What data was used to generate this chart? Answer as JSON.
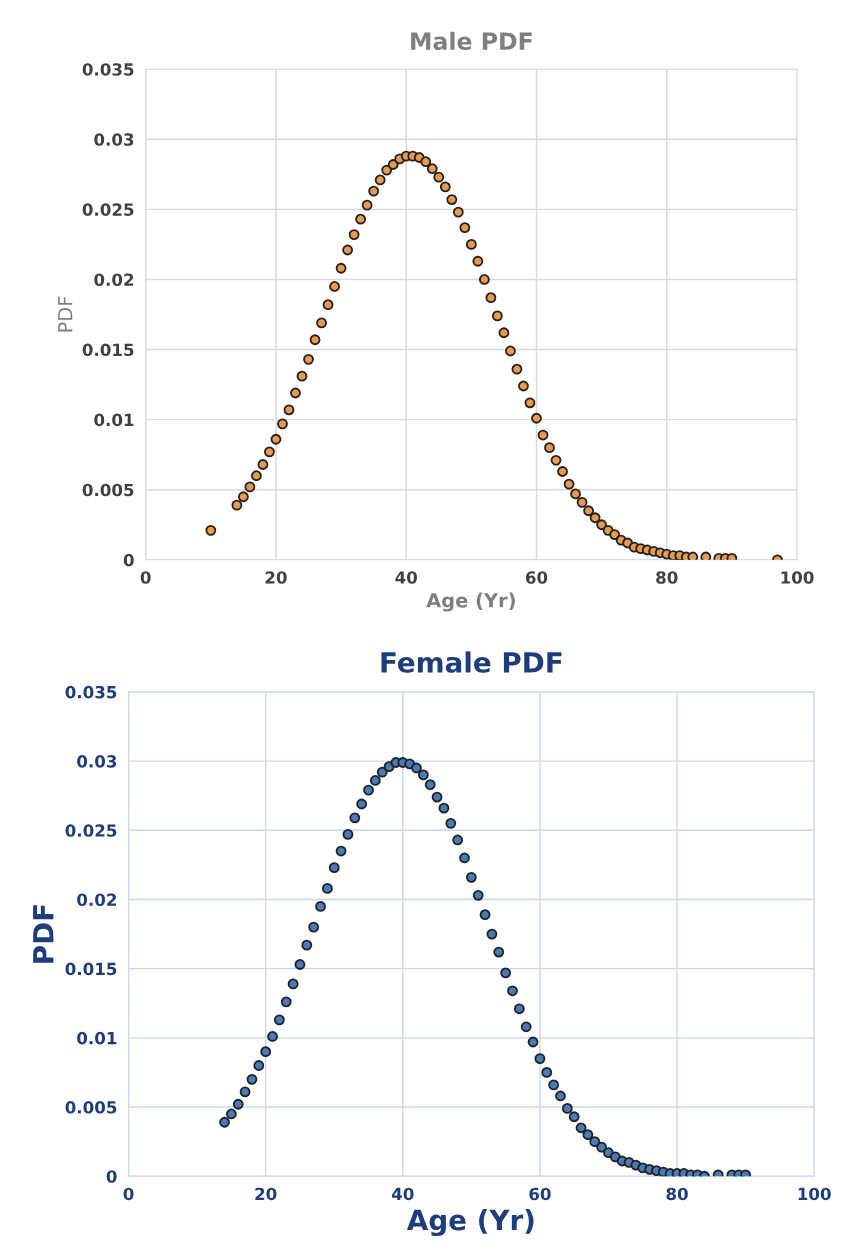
{
  "chart_data": [
    {
      "type": "scatter",
      "title": "Male PDF",
      "xlabel": "Age (Yr)",
      "ylabel": "PDF",
      "xlim": [
        0,
        100
      ],
      "xticks": [
        0,
        20,
        40,
        60,
        80,
        100
      ],
      "ylim": [
        0,
        0.035
      ],
      "yticks": [
        0,
        0.005,
        0.01,
        0.015,
        0.02,
        0.025,
        0.03,
        0.035
      ],
      "grid": true,
      "marker": "circle",
      "series": [
        {
          "color": "#e89a50",
          "x": [
            10,
            14,
            15,
            16,
            17,
            18,
            19,
            20,
            21,
            22,
            23,
            24,
            25,
            26,
            27,
            28,
            29,
            30,
            31,
            32,
            33,
            34,
            35,
            36,
            37,
            38,
            39,
            40,
            41,
            42,
            43,
            44,
            45,
            46,
            47,
            48,
            49,
            50,
            51,
            52,
            53,
            54,
            55,
            56,
            57,
            58,
            59,
            60,
            61,
            62,
            63,
            64,
            65,
            66,
            67,
            68,
            69,
            70,
            71,
            72,
            73,
            74,
            75,
            76,
            77,
            78,
            79,
            80,
            81,
            82,
            83,
            84,
            86,
            88,
            89,
            90,
            97
          ],
          "values": [
            0.0021,
            0.0039,
            0.0045,
            0.0052,
            0.006,
            0.0068,
            0.0077,
            0.0086,
            0.0097,
            0.0107,
            0.0119,
            0.0131,
            0.0143,
            0.0157,
            0.0169,
            0.0182,
            0.0195,
            0.0208,
            0.0221,
            0.0232,
            0.0243,
            0.0253,
            0.0263,
            0.0271,
            0.0278,
            0.0282,
            0.0286,
            0.0288,
            0.0288,
            0.0287,
            0.0284,
            0.0279,
            0.0273,
            0.0266,
            0.0257,
            0.0248,
            0.0237,
            0.0225,
            0.0213,
            0.02,
            0.0187,
            0.0174,
            0.0162,
            0.0149,
            0.0136,
            0.0124,
            0.0112,
            0.0101,
            0.0089,
            0.008,
            0.0071,
            0.0063,
            0.0054,
            0.0047,
            0.0041,
            0.0035,
            0.003,
            0.0025,
            0.0021,
            0.0018,
            0.0014,
            0.0012,
            0.0009,
            0.0008,
            0.0007,
            0.0006,
            0.0005,
            0.0004,
            0.0003,
            0.0003,
            0.0002,
            0.0002,
            0.0002,
            0.0001,
            0.0001,
            0.0001,
            0.0
          ]
        }
      ]
    },
    {
      "type": "scatter",
      "title": "Female PDF",
      "xlabel": "Age (Yr)",
      "ylabel": "PDF",
      "xlim": [
        0,
        100
      ],
      "xticks": [
        0,
        20,
        40,
        60,
        80,
        100
      ],
      "ylim": [
        0,
        0.035
      ],
      "yticks": [
        0,
        0.005,
        0.01,
        0.015,
        0.02,
        0.025,
        0.03,
        0.035
      ],
      "grid": true,
      "marker": "circle",
      "series": [
        {
          "color": "#4a7ab8",
          "x": [
            14,
            15,
            16,
            17,
            18,
            19,
            20,
            21,
            22,
            23,
            24,
            25,
            26,
            27,
            28,
            29,
            30,
            31,
            32,
            33,
            34,
            35,
            36,
            37,
            38,
            39,
            40,
            41,
            42,
            43,
            44,
            45,
            46,
            47,
            48,
            49,
            50,
            51,
            52,
            53,
            54,
            55,
            56,
            57,
            58,
            59,
            60,
            61,
            62,
            63,
            64,
            65,
            66,
            67,
            68,
            69,
            70,
            71,
            72,
            73,
            74,
            75,
            76,
            77,
            78,
            79,
            80,
            81,
            82,
            83,
            84,
            86,
            88,
            89,
            90
          ],
          "values": [
            0.0039,
            0.0045,
            0.0052,
            0.0061,
            0.007,
            0.008,
            0.009,
            0.0101,
            0.0113,
            0.0126,
            0.0139,
            0.0153,
            0.0167,
            0.018,
            0.0195,
            0.0208,
            0.0223,
            0.0235,
            0.0247,
            0.0259,
            0.0269,
            0.0279,
            0.0286,
            0.0292,
            0.0296,
            0.0299,
            0.0299,
            0.0298,
            0.0295,
            0.029,
            0.0283,
            0.0274,
            0.0266,
            0.0255,
            0.0243,
            0.023,
            0.0216,
            0.0203,
            0.0189,
            0.0175,
            0.0162,
            0.0147,
            0.0134,
            0.0121,
            0.0108,
            0.0097,
            0.0085,
            0.0075,
            0.0066,
            0.0058,
            0.0049,
            0.0043,
            0.0035,
            0.003,
            0.0025,
            0.0021,
            0.0017,
            0.0014,
            0.0011,
            0.001,
            0.0008,
            0.0006,
            0.0005,
            0.0004,
            0.0003,
            0.0002,
            0.0002,
            0.0002,
            0.0001,
            0.0001,
            0.0,
            0.0001,
            0.0001,
            0.0001,
            0.0001
          ]
        }
      ]
    }
  ]
}
